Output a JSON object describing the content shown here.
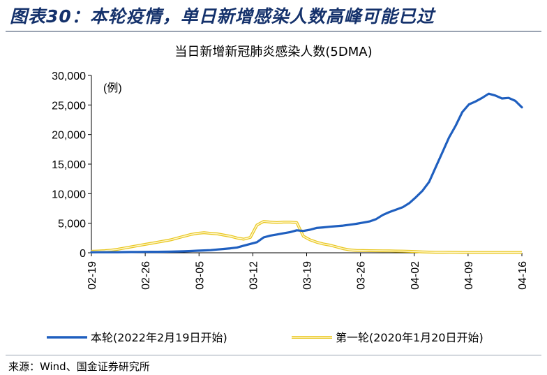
{
  "figure": {
    "title": "图表30：本轮疫情，单日新增感染人数高峰可能已过",
    "source": "来源：Wind、国金证券研究所"
  },
  "chart_data": {
    "type": "line",
    "title": "当日新增新冠肺炎感染人数(5DMA)",
    "unit_label": "(例)",
    "x_ticks": [
      "02-19",
      "02-26",
      "03-05",
      "03-12",
      "03-19",
      "03-26",
      "04-02",
      "04-09",
      "04-16"
    ],
    "ylim": [
      0,
      30000
    ],
    "y_ticks": [
      "0",
      "5,000",
      "10,000",
      "15,000",
      "20,000",
      "25,000",
      "30,000"
    ],
    "legend_position": "bottom",
    "colors": {
      "series1": "#1f5fbf",
      "series2": "#e8c61e",
      "series2_outline": "#f0d65a"
    },
    "series": [
      {
        "name": "本轮(2022年2月19日开始)",
        "values": [
          80,
          90,
          100,
          100,
          110,
          120,
          130,
          140,
          150,
          160,
          170,
          180,
          200,
          220,
          250,
          300,
          350,
          400,
          450,
          550,
          650,
          750,
          900,
          1200,
          1500,
          1800,
          2600,
          2900,
          3100,
          3300,
          3500,
          3800,
          3700,
          3900,
          4200,
          4300,
          4400,
          4500,
          4600,
          4750,
          4900,
          5100,
          5300,
          5700,
          6400,
          6900,
          7300,
          7700,
          8400,
          9400,
          10500,
          12000,
          14500,
          17000,
          19500,
          21500,
          23800,
          25100,
          25600,
          26200,
          26900,
          26600,
          26100,
          26200,
          25700,
          24600
        ]
      },
      {
        "name": "第一轮(2020年1月20日开始)",
        "values": [
          250,
          300,
          350,
          450,
          600,
          800,
          1000,
          1200,
          1400,
          1600,
          1800,
          2000,
          2200,
          2500,
          2800,
          3100,
          3300,
          3400,
          3300,
          3200,
          3000,
          2800,
          2500,
          2300,
          2600,
          4700,
          5300,
          5200,
          5100,
          5200,
          5200,
          5100,
          2800,
          2200,
          1800,
          1500,
          1300,
          1000,
          700,
          500,
          400,
          380,
          350,
          340,
          330,
          320,
          300,
          280,
          250,
          200,
          150,
          120,
          100,
          90,
          80,
          70,
          60,
          60,
          60,
          60,
          60,
          60,
          60,
          60,
          60,
          60
        ]
      }
    ]
  }
}
